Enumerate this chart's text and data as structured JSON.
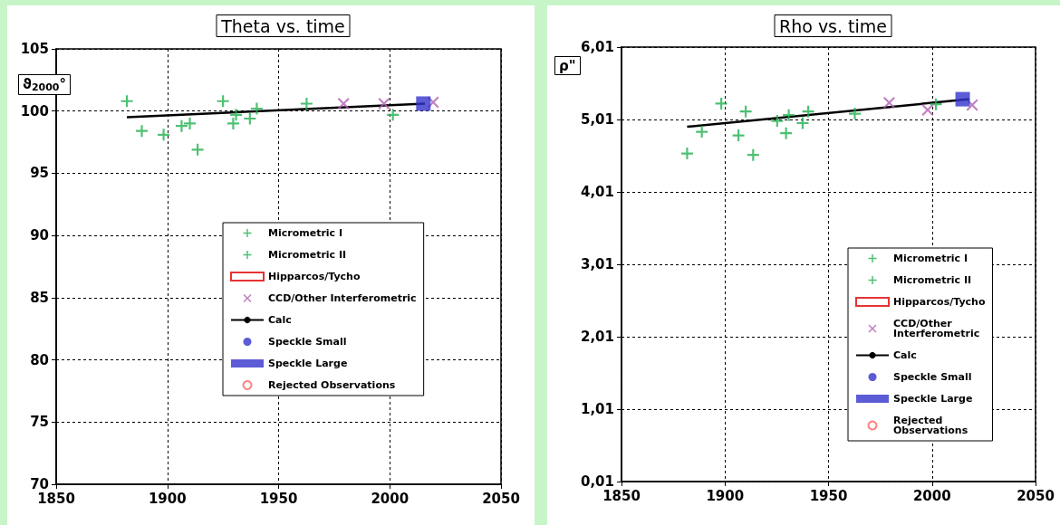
{
  "chart_data": [
    {
      "type": "scatter",
      "title": "Theta vs. time",
      "ylabel": "ϑ$_{2000}$°",
      "xlim": [
        1850,
        2050
      ],
      "xticks": [
        1850,
        1900,
        1950,
        2000,
        2050
      ],
      "ylim": [
        70,
        105
      ],
      "yticks": [
        70,
        75,
        80,
        85,
        90,
        95,
        100,
        105
      ],
      "grid": true,
      "legend": "bottom right",
      "series": [
        {
          "name": "Micrometric I",
          "color": "#22b050",
          "marker": "cross",
          "x": [
            1881.8,
            1888.5,
            1898.3,
            1906.4,
            1910.1,
            1913.6,
            1925,
            1929.6,
            1930.9,
            1937.1,
            1940.2,
            1962.6,
            2001.4
          ],
          "values": [
            100.8,
            98.4,
            98.1,
            98.8,
            99,
            96.9,
            100.8,
            99,
            99.7,
            99.4,
            100.2,
            100.6,
            99.7
          ]
        },
        {
          "name": "Micrometric II",
          "color": "#22b050",
          "marker": "cross"
        },
        {
          "name": "Hipparcos/Tycho",
          "color": "#e00000",
          "marker": "square_open"
        },
        {
          "name": "CCD/Other Interferometric",
          "color": "#b060b0",
          "marker": "x",
          "x": [
            1979.2,
            1997.4,
            2019.5
          ],
          "values": [
            100.6,
            100.6,
            100.7
          ]
        },
        {
          "name": "Calc",
          "type": "line",
          "color": "#000000",
          "marker": "none",
          "x": [
            1881.8,
            2015.8
          ],
          "values": [
            99.5,
            100.6
          ]
        },
        {
          "name": "Speckle Small",
          "color": "#3333cc",
          "marker": "circle"
        },
        {
          "name": "Speckle Large",
          "color": "#3333cc",
          "marker": "square",
          "x": [
            2015.1
          ],
          "values": [
            100.6
          ]
        },
        {
          "name": "Rejected Observations",
          "color": "#ff6060",
          "marker": "circle_open"
        }
      ]
    },
    {
      "type": "scatter",
      "title": "Rho vs. time",
      "ylabel": "ρ\"",
      "xlim": [
        1850,
        2050
      ],
      "xticks": [
        1850,
        1900,
        1950,
        2000,
        2050
      ],
      "ylim": [
        0.01,
        6.01
      ],
      "yticks": [
        {
          "value": 0.01,
          "label": "0,01"
        },
        {
          "value": 1.01,
          "label": "1,01"
        },
        {
          "value": 2.01,
          "label": "2,01"
        },
        {
          "value": 3.01,
          "label": "3,01"
        },
        {
          "value": 4.01,
          "label": "4,01"
        },
        {
          "value": 5.01,
          "label": "5,01"
        },
        {
          "value": 6.01,
          "label": "6,01"
        }
      ],
      "grid": true,
      "legend": "bottom right",
      "series": [
        {
          "name": "Micrometric I",
          "color": "#22b050",
          "marker": "cross",
          "x": [
            1881.7,
            1888.8,
            1898.2,
            1906.5,
            1910,
            1913.6,
            1925.2,
            1929.5,
            1930.8,
            1937.5,
            1940.2,
            1962.7,
            2001.9
          ],
          "values": [
            4.54,
            4.84,
            5.23,
            4.79,
            5.12,
            4.52,
            4.99,
            4.82,
            5.07,
            4.96,
            5.12,
            5.09,
            5.22
          ]
        },
        {
          "name": "Micrometric II",
          "color": "#22b050",
          "marker": "cross"
        },
        {
          "name": "Hipparcos/Tycho",
          "color": "#e00000",
          "marker": "square_open"
        },
        {
          "name": "CCD/Other Interferometric",
          "color": "#b060b0",
          "marker": "x",
          "x": [
            1979.3,
            1997.9,
            2019.4
          ],
          "values": [
            5.24,
            5.14,
            5.21
          ]
        },
        {
          "name": "Calc",
          "type": "line",
          "color": "#000000",
          "marker": "none",
          "x": [
            1881.7,
            2018
          ],
          "values": [
            4.91,
            5.29
          ]
        },
        {
          "name": "Speckle Small",
          "color": "#3333cc",
          "marker": "circle"
        },
        {
          "name": "Speckle Large",
          "color": "#3333cc",
          "marker": "square",
          "x": [
            2014.8
          ],
          "values": [
            5.29
          ]
        },
        {
          "name": "Rejected Observations",
          "color": "#ff6060",
          "marker": "circle_open"
        }
      ]
    }
  ]
}
